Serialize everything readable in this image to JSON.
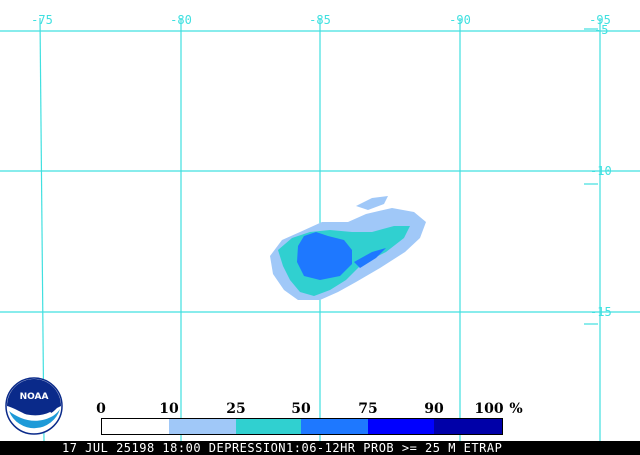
{
  "map": {
    "lon_labels": [
      "-75",
      "-80",
      "-85",
      "-90",
      "-95"
    ],
    "lat_labels": [
      "-5",
      "-10",
      "-15"
    ],
    "grid_color": "#40e0e0"
  },
  "legend": {
    "ticks": [
      "0",
      "10",
      "25",
      "50",
      "75",
      "90",
      "100"
    ],
    "unit": "%",
    "colors": [
      "#ffffff",
      "#a0c8f8",
      "#30d0d0",
      "#1e78ff",
      "#0000ff",
      "#0000a8"
    ]
  },
  "footer": {
    "text": "17 JUL 25198 18:00 DEPRESSION1:06-12HR PROB >= 25 M ETRAP"
  },
  "logo": {
    "text": "NOAA"
  }
}
